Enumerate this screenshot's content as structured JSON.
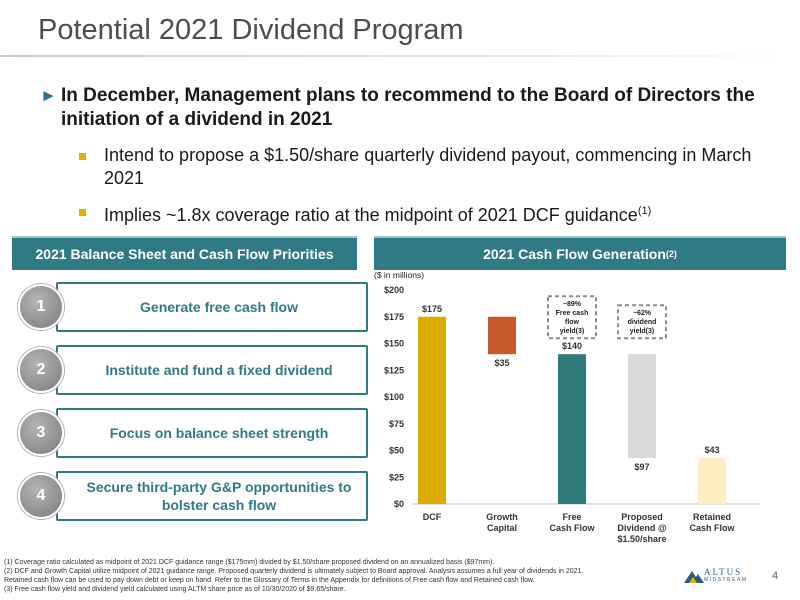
{
  "title": "Potential 2021 Dividend Program",
  "bullets": {
    "main": "In December, Management plans to recommend to the Board of Directors the initiation of a dividend in 2021",
    "sub1": "Intend to propose a $1.50/share quarterly dividend payout, commencing in March 2021",
    "sub2": "Implies ~1.8x coverage ratio at the midpoint of 2021 DCF guidance",
    "sub2_sup": "(1)"
  },
  "left_panel": {
    "header": "2021 Balance Sheet and Cash Flow Priorities",
    "items": [
      {
        "num": "1",
        "label": "Generate free cash flow"
      },
      {
        "num": "2",
        "label": "Institute and fund a fixed dividend"
      },
      {
        "num": "3",
        "label": "Focus on balance sheet strength"
      },
      {
        "num": "4",
        "label": "Secure third-party G&P opportunities to bolster cash flow"
      }
    ]
  },
  "right_panel": {
    "header": "2021 Cash Flow Generation",
    "header_sup": "(2)"
  },
  "chart_data": {
    "type": "bar",
    "subtype": "waterfall",
    "units_label": "($ in millions)",
    "y_ticks": [
      "$0",
      "$25",
      "$50",
      "$75",
      "$100",
      "$125",
      "$150",
      "$175",
      "$200"
    ],
    "ylim": [
      0,
      200
    ],
    "bars": [
      {
        "category": [
          "DCF"
        ],
        "start": 0,
        "end": 175,
        "label": "$175",
        "color": "#dcac00"
      },
      {
        "category": [
          "Growth",
          "Capital"
        ],
        "start": 140,
        "end": 175,
        "label": "$35",
        "color": "#c65a2b"
      },
      {
        "category": [
          "Free",
          "Cash Flow"
        ],
        "start": 0,
        "end": 140,
        "label": "$140",
        "color": "#2e7a7a"
      },
      {
        "category": [
          "Proposed",
          "Dividend @",
          "$1.50/share"
        ],
        "start": 43,
        "end": 140,
        "label": "$97",
        "color": "#d9d9d9"
      },
      {
        "category": [
          "Retained",
          "Cash Flow"
        ],
        "start": 0,
        "end": 43,
        "label": "$43",
        "color": "#fdefc4"
      }
    ],
    "callouts": [
      {
        "lines": [
          "~89%",
          "Free cash",
          "flow",
          "yield(3)"
        ],
        "bar_index": 2
      },
      {
        "lines": [
          "~62%",
          "dividend",
          "yield(3)"
        ],
        "bar_index": 3
      }
    ]
  },
  "footnotes": [
    "(1) Coverage ratio calculated as midpoint of 2021 DCF guidance range ($175mm) divided by $1.50/share proposed dividend on an annualized basis ($97mm).",
    "(2) DCF and Growth Capital utilize midpoint of 2021 guidance range. Proposed quarterly dividend is ultimately subject to Board approval. Analysis assumes a full year of dividends in 2021.",
    "Retained cash flow can be used to pay down debt or keep on hand. Refer to the Glossary of Terms in the Appendix for definitions of Free cash flow and Retained cash flow.",
    "(3) Free cash flow yield and dividend yield calculated using ALTM share price as of 10/30/2020 of $9.65/share."
  ],
  "logo": {
    "word": "ALTUS",
    "sub": "MIDSTREAM",
    "icon": "mountain-logo-icon"
  },
  "page_number": "4"
}
